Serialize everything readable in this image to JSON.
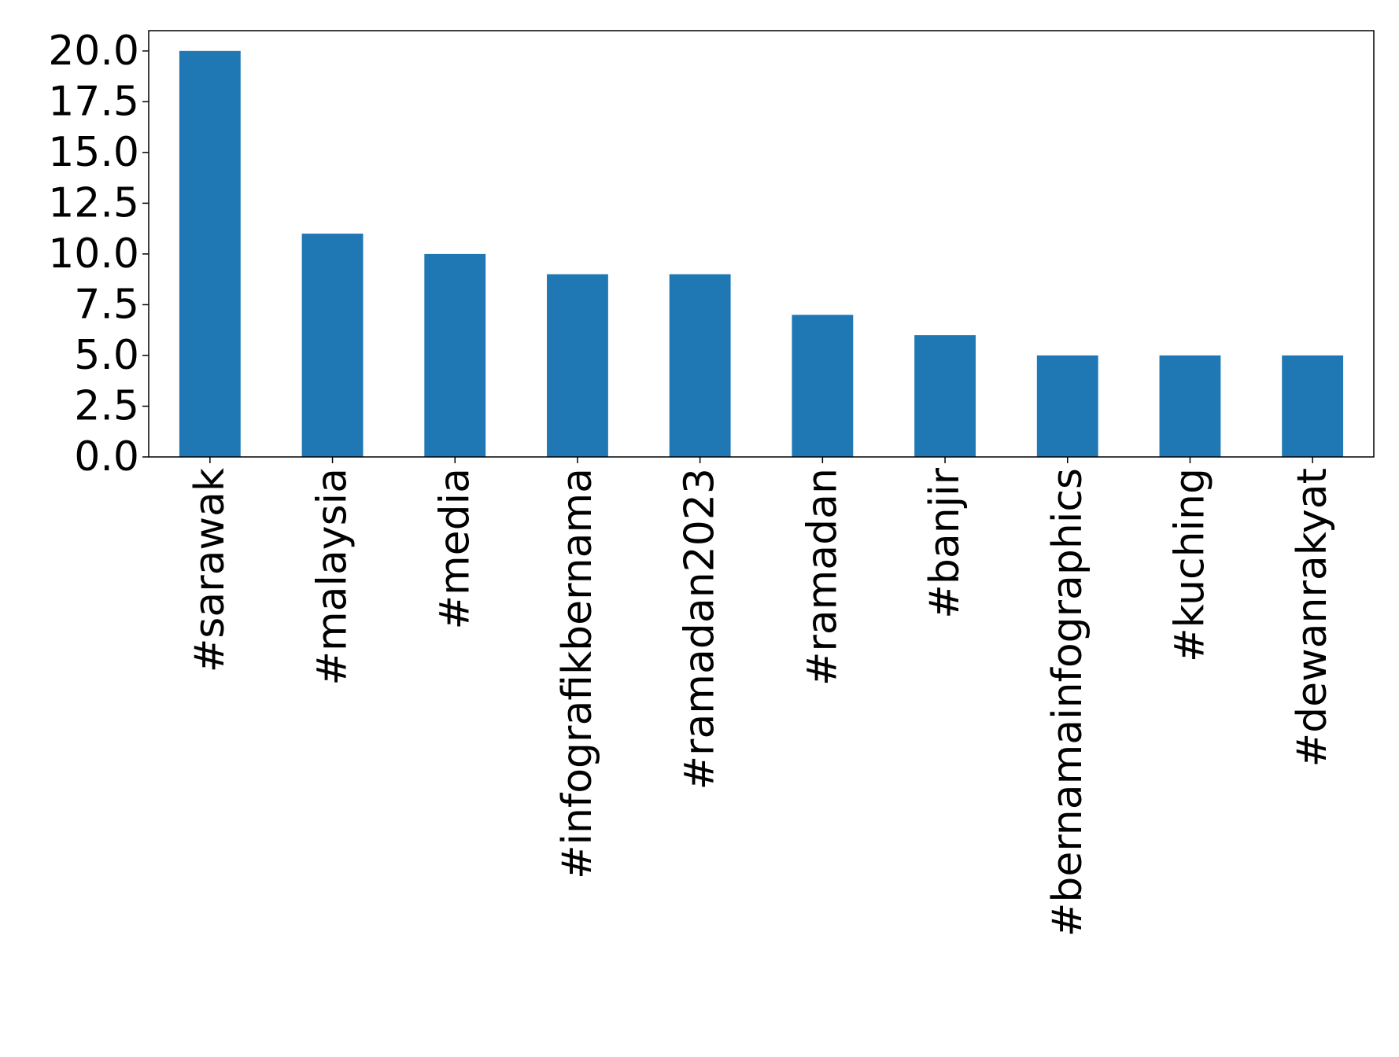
{
  "chart_data": {
    "type": "bar",
    "title": "",
    "xlabel": "",
    "ylabel": "",
    "categories": [
      "#sarawak",
      "#malaysia",
      "#media",
      "#infografikbernama",
      "#ramadan2023",
      "#ramadan",
      "#banjir",
      "#bernamainfographics",
      "#kuching",
      "#dewanrakyat"
    ],
    "values": [
      20,
      11,
      10,
      9,
      9,
      7,
      6,
      5,
      5,
      5
    ],
    "ylim": [
      0,
      21
    ],
    "yticks": [
      "0.0",
      "2.5",
      "5.0",
      "7.5",
      "10.0",
      "12.5",
      "15.0",
      "17.5",
      "20.0"
    ],
    "grid": false,
    "bar_color": "#1f77b4"
  }
}
